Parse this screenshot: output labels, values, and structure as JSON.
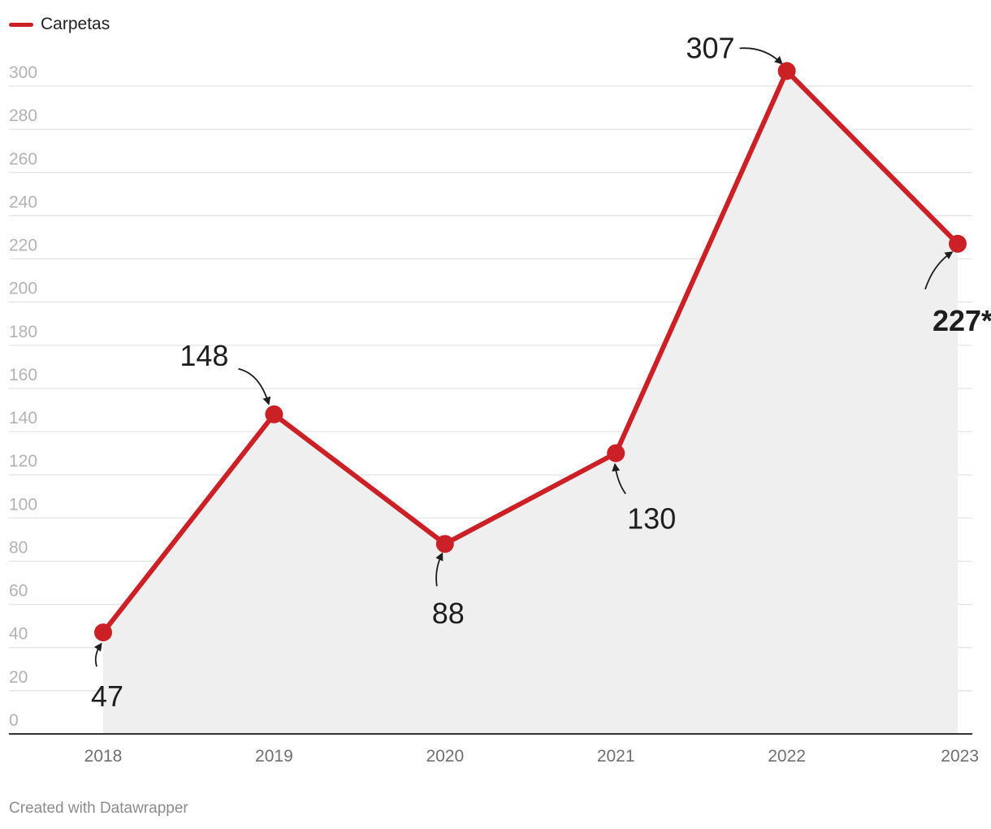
{
  "chart_data": {
    "type": "area",
    "categories": [
      "2018",
      "2019",
      "2020",
      "2021",
      "2022",
      "2023"
    ],
    "series": [
      {
        "name": "Carpetas",
        "values": [
          47,
          148,
          88,
          130,
          307,
          227
        ]
      }
    ],
    "data_labels": [
      "47",
      "148",
      "88",
      "130",
      "307",
      "227*"
    ],
    "yticks": [
      0,
      20,
      40,
      60,
      80,
      100,
      120,
      140,
      160,
      180,
      200,
      220,
      240,
      260,
      280,
      300
    ],
    "ylim": [
      0,
      307
    ],
    "grid": true,
    "legend_position": "top-left"
  },
  "colors": {
    "line": "#cc2027",
    "area": "#efefef",
    "grid": "#e2e2e2",
    "axis": "#333333"
  },
  "footer": {
    "credit": "Created with Datawrapper"
  }
}
